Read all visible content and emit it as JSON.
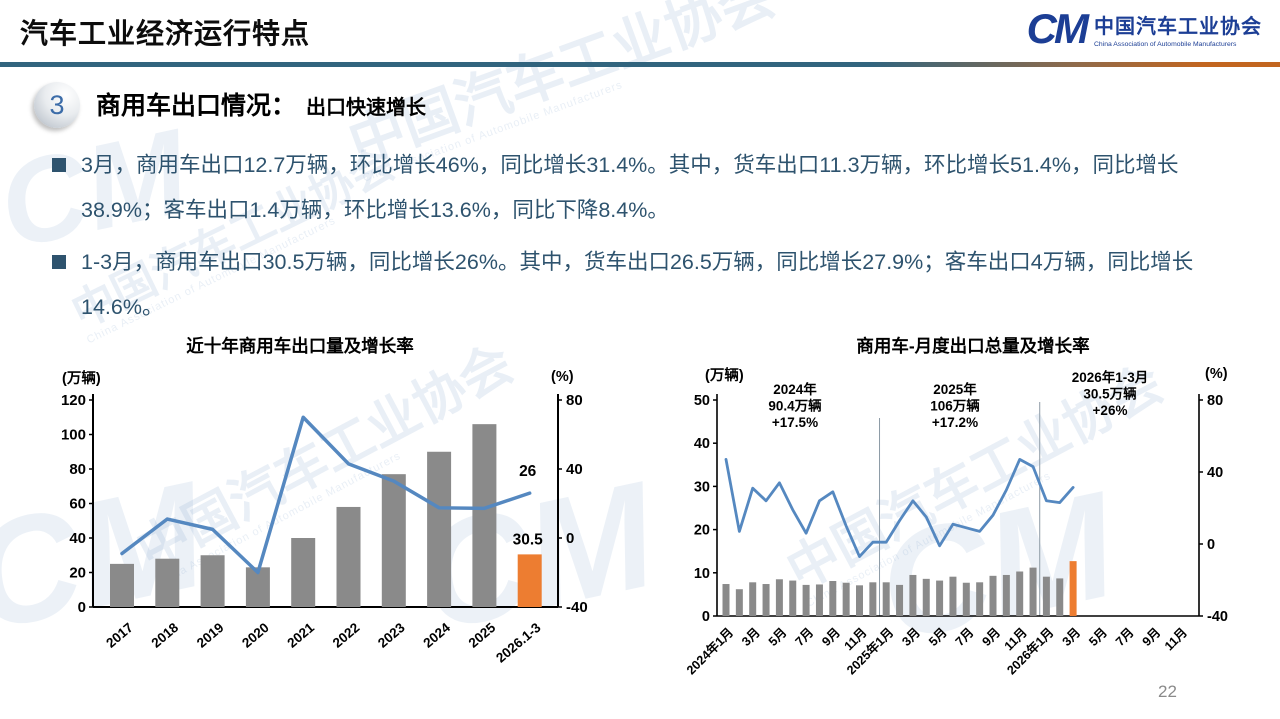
{
  "header": {
    "title": "汽车工业经济运行特点"
  },
  "logo": {
    "mark": "CM",
    "name_cn": "中国汽车工业协会",
    "name_en": "China Association of Automobile Manufacturers"
  },
  "section": {
    "number": "3",
    "title": "商用车出口情况：",
    "subtitle": "出口快速增长"
  },
  "bullets": [
    {
      "text": "3月，商用车出口12.7万辆，环比增长46%，同比增长31.4%。其中，货车出口11.3万辆，环比增长51.4%，同比增长38.9%；客车出口1.4万辆，环比增长13.6%，同比下降8.4%。"
    },
    {
      "text": "1-3月，商用车出口30.5万辆，同比增长26%。其中，货车出口26.5万辆，同比增长27.9%；客车出口4万辆，同比增长14.6%。"
    }
  ],
  "watermark": {
    "cn": "中国汽车工业协会",
    "en": "China Association of Automobile Manufacturers"
  },
  "page_number": "22",
  "colors": {
    "bar_gray": "#8a8a8a",
    "bar_orange": "#ed7d31",
    "line_blue": "#5588c0",
    "divider_gray": "#8c9aa5",
    "axis_black": "#000000"
  },
  "chart_data": [
    {
      "id": "yearly",
      "type": "bar+line",
      "title": "近十年商用车出口量及增长率",
      "left_axis": {
        "label": "(万辆)",
        "min": 0,
        "max": 120,
        "ticks": [
          0,
          20,
          40,
          60,
          80,
          100,
          120
        ]
      },
      "right_axis": {
        "label": "(%)",
        "min": -40,
        "max": 80,
        "ticks": [
          80,
          40,
          0,
          -40
        ]
      },
      "categories": [
        "2017",
        "2018",
        "2019",
        "2020",
        "2021",
        "2022",
        "2023",
        "2024",
        "2025",
        "2026.1-3"
      ],
      "series": [
        {
          "name": "商用车出口量",
          "type": "bar",
          "axis": "left",
          "highlight_last": true,
          "values": [
            25,
            28,
            30,
            23,
            40,
            58,
            77,
            90,
            106,
            30.5
          ]
        },
        {
          "name": "增长率",
          "type": "line",
          "axis": "right",
          "values": [
            -9,
            11,
            5,
            -20,
            70,
            43,
            33,
            17.5,
            17.2,
            26
          ]
        }
      ],
      "data_labels": [
        {
          "text": "26",
          "series": "line",
          "index": 9
        },
        {
          "text": "30.5",
          "series": "bar",
          "index": 9
        }
      ],
      "legend": null,
      "grid": false
    },
    {
      "id": "monthly",
      "type": "bar+line",
      "title": "商用车-月度出口总量及增长率",
      "left_axis": {
        "label": "(万辆)",
        "min": 0,
        "max": 50,
        "ticks": [
          0,
          10,
          20,
          30,
          40,
          50
        ]
      },
      "right_axis": {
        "label": "(%)",
        "min": -40,
        "max": 80,
        "ticks": [
          80,
          40,
          0,
          -40
        ]
      },
      "n_slots": 35,
      "tick_every": 2,
      "x_tick_labels": [
        "2024年1月",
        "3月",
        "5月",
        "7月",
        "9月",
        "11月",
        "2025年1月",
        "3月",
        "5月",
        "7月",
        "9月",
        "11月",
        "2026年1月",
        "3月",
        "5月",
        "7月",
        "9月",
        "11月"
      ],
      "series": [
        {
          "name": "月度出口量",
          "type": "bar",
          "axis": "left",
          "highlight_last": true,
          "values": [
            7.4,
            6.2,
            7.8,
            7.4,
            8.5,
            8.2,
            7.2,
            7.3,
            8.1,
            7.7,
            7.1,
            7.8,
            7.8,
            7.2,
            9.5,
            8.6,
            8.2,
            9.1,
            7.7,
            7.8,
            9.3,
            9.5,
            10.3,
            11.2,
            9.1,
            8.7,
            12.7
          ]
        },
        {
          "name": "同比增长率",
          "type": "line",
          "axis": "right",
          "values": [
            47,
            7,
            31,
            24,
            34,
            19,
            6,
            24,
            29,
            10,
            -7,
            1,
            1,
            13,
            24,
            15,
            -1,
            11,
            9,
            7,
            16,
            30,
            47,
            43,
            24,
            23,
            31.4
          ]
        }
      ],
      "annotations": [
        {
          "lines": [
            "2024年",
            "90.4万辆",
            "+17.5%"
          ]
        },
        {
          "lines": [
            "2025年",
            "106万辆",
            "+17.2%"
          ]
        },
        {
          "lines": [
            "2026年1-3月",
            "30.5万辆",
            "+26%"
          ]
        }
      ],
      "dividers_after_index": [
        11,
        23
      ],
      "grid": false
    }
  ]
}
